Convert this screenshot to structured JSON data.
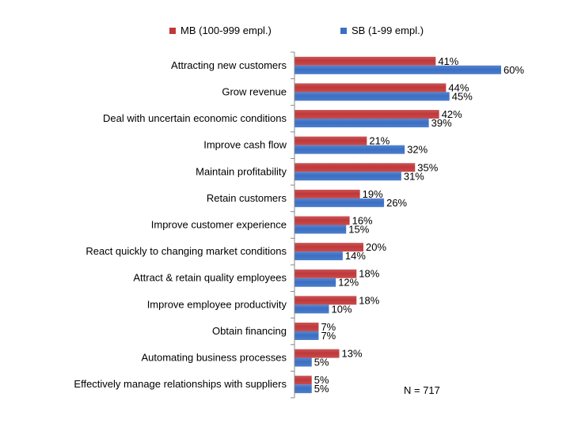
{
  "chart_data": {
    "type": "bar",
    "orientation": "horizontal",
    "categories": [
      "Attracting new customers",
      "Grow revenue",
      "Deal with uncertain economic conditions",
      "Improve cash flow",
      "Maintain profitability",
      "Retain customers",
      "Improve customer experience",
      "React quickly to changing market conditions",
      "Attract & retain quality employees",
      "Improve employee productivity",
      "Obtain financing",
      "Automating business processes",
      "Effectively manage relationships with suppliers"
    ],
    "series": [
      {
        "name": "MB (100-999 empl.)",
        "color": "#c0383a",
        "values": [
          41,
          44,
          42,
          21,
          35,
          19,
          16,
          20,
          18,
          18,
          7,
          13,
          5
        ],
        "labels": [
          "41%",
          "44%",
          "42%",
          "21%",
          "35%",
          "19%",
          "16%",
          "20%",
          "18%",
          "18%",
          "7%",
          "13%",
          "5%"
        ]
      },
      {
        "name": "SB (1-99 empl.)",
        "color": "#3a6fc4",
        "values": [
          60,
          45,
          39,
          32,
          31,
          26,
          15,
          14,
          12,
          10,
          7,
          5,
          5
        ],
        "labels": [
          "60%",
          "45%",
          "39%",
          "32%",
          "31%",
          "26%",
          "15%",
          "14%",
          "12%",
          "10%",
          "7%",
          "5%",
          "5%"
        ]
      }
    ],
    "xlim": [
      0,
      100
    ],
    "grid": false,
    "legend_position": "top",
    "annotation": "N = 717",
    "value_unit": "%"
  }
}
